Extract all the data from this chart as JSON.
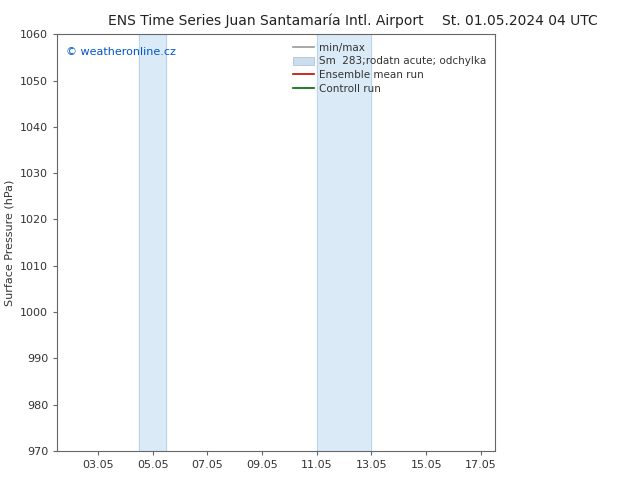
{
  "title_left": "ENS Time Series Juan Santamaría Intl. Airport",
  "title_right": "St. 01.05.2024 04 UTC",
  "ylabel": "Surface Pressure (hPa)",
  "ylim": [
    970,
    1060
  ],
  "yticks": [
    970,
    980,
    990,
    1000,
    1010,
    1020,
    1030,
    1040,
    1050,
    1060
  ],
  "xtick_labels": [
    "03.05",
    "05.05",
    "07.05",
    "09.05",
    "11.05",
    "13.05",
    "15.05",
    "17.05"
  ],
  "xtick_positions": [
    3,
    5,
    7,
    9,
    11,
    13,
    15,
    17
  ],
  "xlim": [
    1.5,
    17.5
  ],
  "shaded_bands": [
    {
      "xmin": 4.5,
      "xmax": 5.5
    },
    {
      "xmin": 11.0,
      "xmax": 13.0
    }
  ],
  "shade_color": "#daeaf7",
  "shade_edge_color": "#b8d4eb",
  "watermark": "© weatheronline.cz",
  "watermark_color": "#0055cc",
  "bg_color": "#ffffff",
  "title_fontsize": 10,
  "ylabel_fontsize": 8,
  "tick_fontsize": 8,
  "legend_fontsize": 7.5,
  "spine_color": "#666666"
}
